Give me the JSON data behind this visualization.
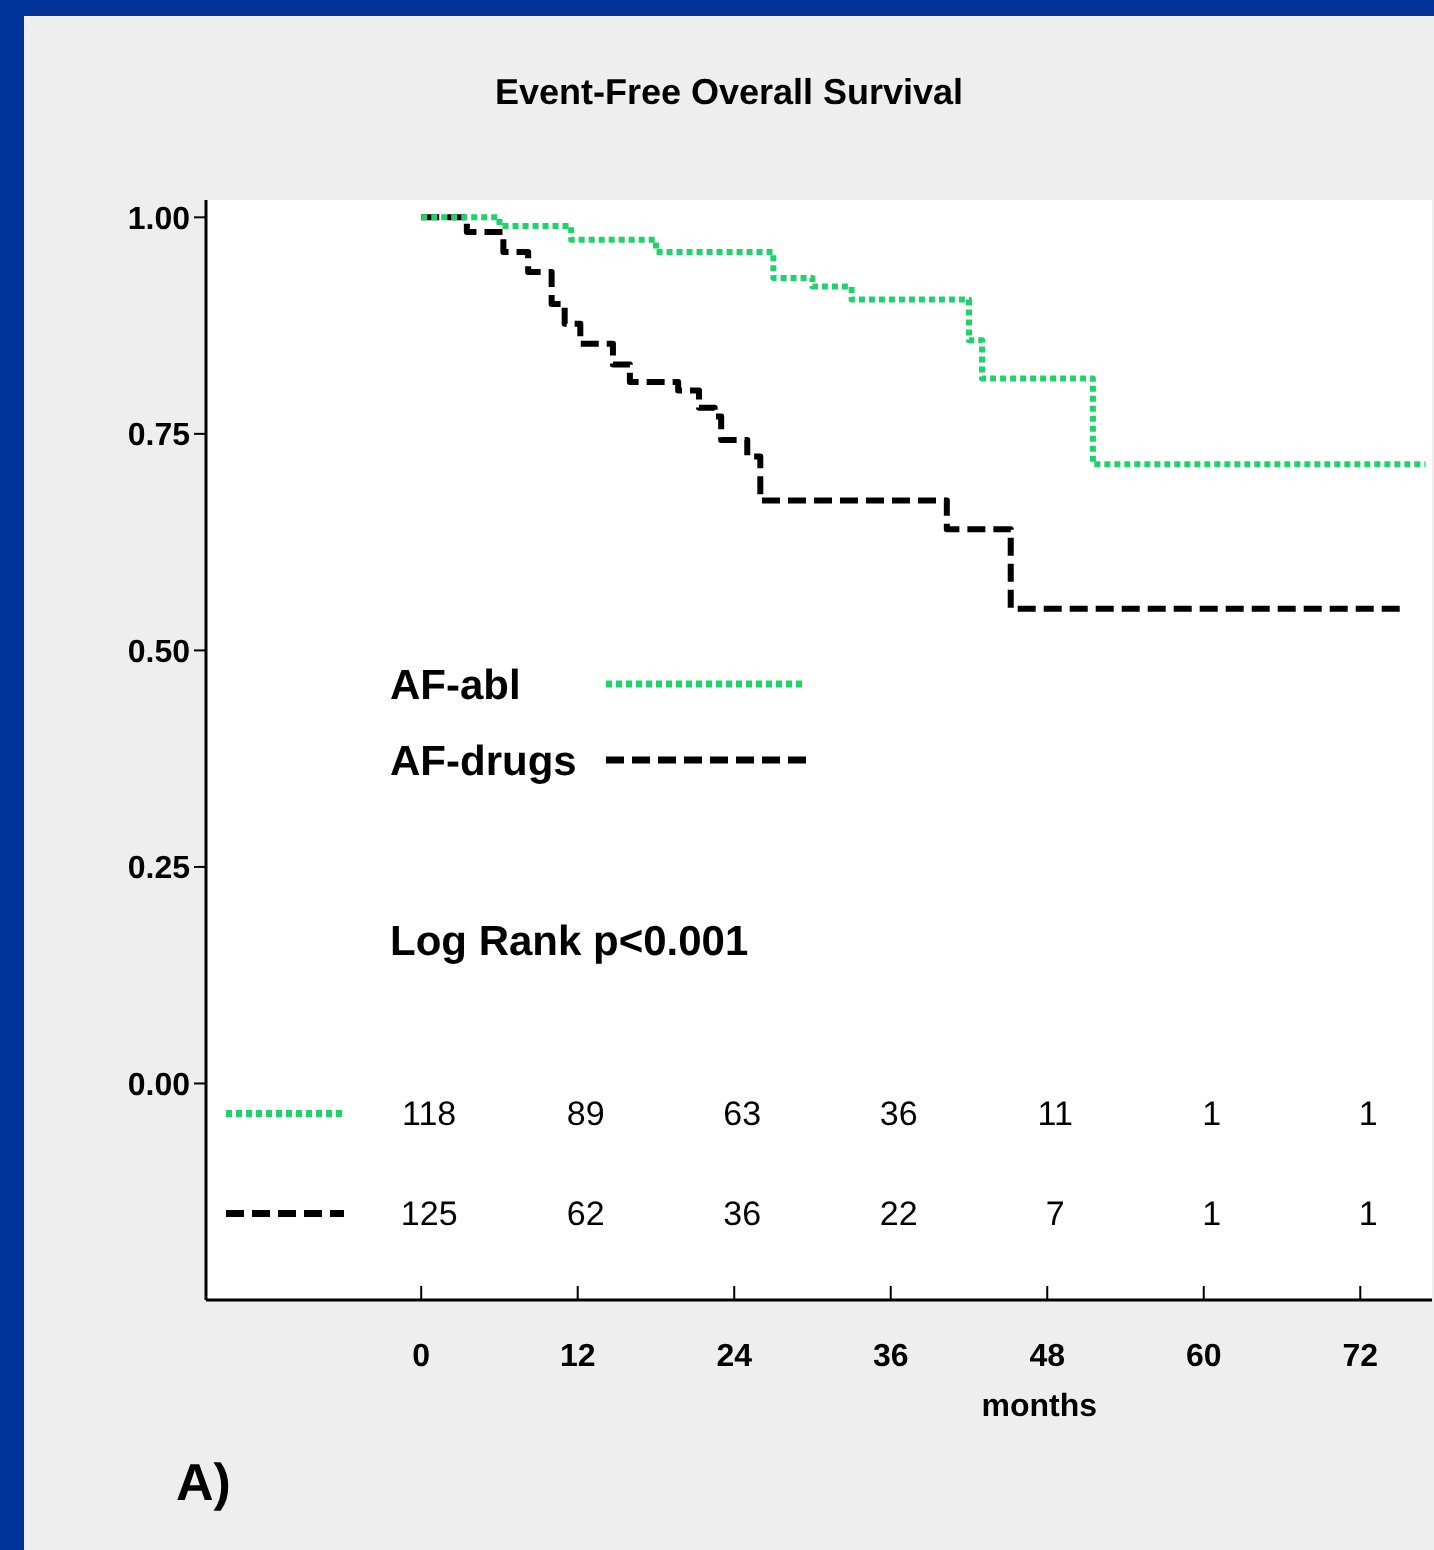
{
  "chart_data": {
    "type": "step",
    "title": "Event-Free Overall Survival",
    "xlabel": "months",
    "xlim": [
      -16.5,
      77.5
    ],
    "xticks": [
      0,
      12,
      24,
      36,
      48,
      60,
      72
    ],
    "ylim": [
      -0.25,
      1.02
    ],
    "yticks": [
      {
        "value": 0,
        "label": "0.00"
      },
      {
        "value": 0.25,
        "label": "0.25"
      },
      {
        "value": 0.5,
        "label": "0.50"
      },
      {
        "value": 0.75,
        "label": "0.75"
      },
      {
        "value": 1,
        "label": "1.00"
      }
    ],
    "grid": false,
    "legend": "left",
    "marker": "none",
    "series": [
      {
        "name": "AF-abl",
        "color": "#1ed36a",
        "line_style": "dotted",
        "x": [
          0,
          6,
          11.5,
          18,
          27,
          30,
          33,
          42,
          43,
          51.5,
          77
        ],
        "values": [
          1,
          0.99,
          0.974,
          0.96,
          0.93,
          0.92,
          0.905,
          0.858,
          0.814,
          0.715,
          0.715
        ]
      },
      {
        "name": "AF-drugs",
        "color": "#000000",
        "line_style": "dashed",
        "x": [
          0,
          3.5,
          6.3,
          8.2,
          10,
          11,
          12.2,
          14.7,
          16,
          19.7,
          21.3,
          22.5,
          23,
          25,
          26,
          40.3,
          45.2,
          75.6
        ],
        "values": [
          1,
          0.983,
          0.96,
          0.937,
          0.9,
          0.877,
          0.854,
          0.83,
          0.81,
          0.8,
          0.78,
          0.77,
          0.743,
          0.724,
          0.673,
          0.64,
          0.548,
          0.548
        ]
      }
    ],
    "annotations": [
      "118 89 63 36 11 1 1",
      "125 62 36 22 7 1 1",
      "Log Rank p<0.001",
      "A)"
    ]
  }
}
